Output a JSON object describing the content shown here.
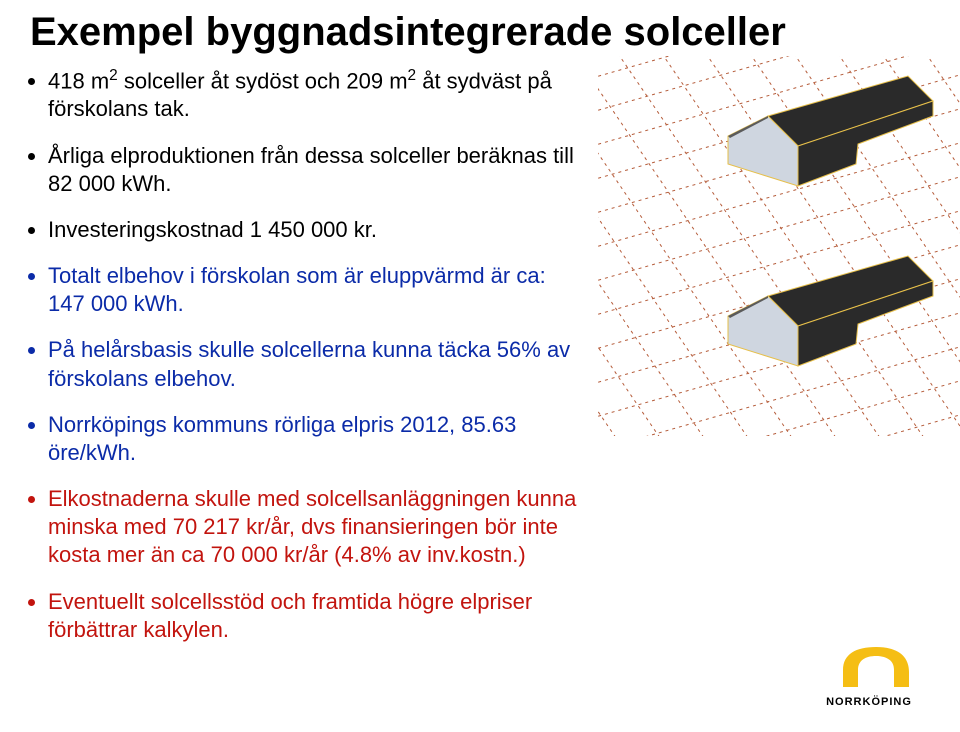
{
  "title": "Exempel byggnadsintegrerade solceller",
  "bullets": {
    "b1_a": "418 m",
    "b1_b": " solceller åt sydöst och 209 m",
    "b1_c": " åt sydväst på förskolans tak.",
    "b2": "Årliga elproduktionen från dessa solceller beräknas till 82 000 kWh.",
    "b3": "Investeringskostnad 1 450 000 kr.",
    "b4": "Totalt elbehov i förskolan som är eluppvärmd är ca: 147 000 kWh.",
    "b5": "På helårsbasis skulle solcellerna kunna täcka 56% av förskolans elbehov.",
    "b6": "Norrköpings kommuns rörliga elpris 2012, 85.63 öre/kWh.",
    "b7": "Elkostnaderna skulle med solcellsanläggningen kunna minska med 70 217 kr/år, dvs finansieringen bör inte kosta mer än ca 70 000 kr/år (4.8% av inv.kostn.)",
    "b8": "Eventuellt solcellsstöd och framtida högre elpriser förbättrar kalkylen."
  },
  "sup2": "2",
  "diagram": {
    "grid_stroke": "#b55c3a",
    "grid_dash": "3,4",
    "panel_fill_dark": "#2a2a2a",
    "panel_fill_mid": "#5b5b5b",
    "panel_side_light": "#cfd6e0",
    "panel_edge": "#e6bf4a",
    "bg": "#ffffff"
  },
  "logo": {
    "text": "NORRKÖPING",
    "text_color": "#000000",
    "n_color": "#f5be14",
    "font_size": 11,
    "letter_spacing": 1
  }
}
